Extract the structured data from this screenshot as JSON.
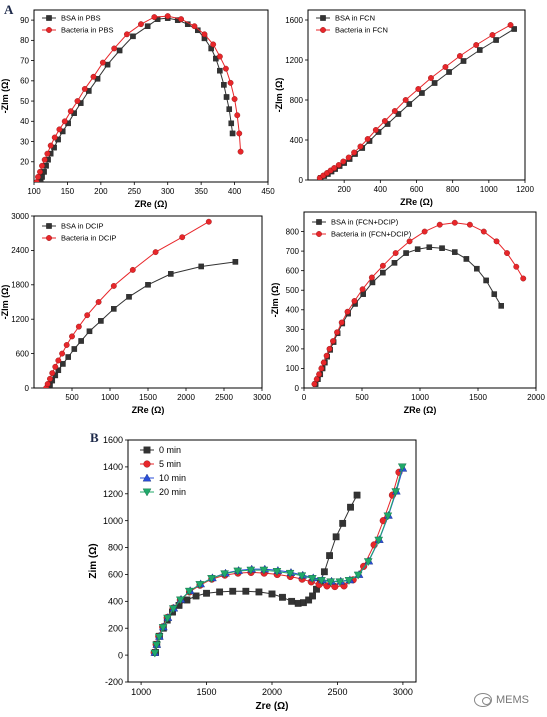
{
  "panel_labels": {
    "a": "A",
    "b": "B"
  },
  "watermark": {
    "text": "MEMS",
    "icon": "wechat-icon"
  },
  "colors": {
    "black": "#333333",
    "red": "#e8262a",
    "blue": "#2a4ed8",
    "green": "#20a86a"
  },
  "chart_data": [
    {
      "type": "line",
      "xlabel": "ZRe (Ω)",
      "ylabel": "-ZIm (Ω)",
      "xlim": [
        100,
        450
      ],
      "ylim": [
        10,
        95
      ],
      "xticks": [
        100,
        150,
        200,
        250,
        300,
        350,
        400,
        450
      ],
      "yticks": [
        20,
        30,
        40,
        50,
        60,
        70,
        80,
        90
      ],
      "legend_position": "top-left",
      "series": [
        {
          "name": "BSA in PBS",
          "color": "#333333",
          "marker": "square",
          "x": [
            110,
            112,
            115,
            118,
            121,
            125,
            130,
            136,
            143,
            151,
            160,
            170,
            182,
            195,
            210,
            228,
            248,
            270,
            285,
            300,
            315,
            330,
            345,
            355,
            365,
            372,
            378,
            384,
            388,
            392,
            395,
            397
          ],
          "y": [
            10,
            12.5,
            15,
            18,
            21,
            24,
            27,
            31,
            35,
            39,
            44,
            49,
            55,
            61,
            68,
            75,
            82,
            87,
            90.5,
            91,
            90,
            88,
            85,
            81,
            76,
            71,
            65,
            58,
            52,
            46,
            39,
            34
          ]
        },
        {
          "name": "Bacteria in PBS",
          "color": "#e8262a",
          "marker": "circle",
          "x": [
            104,
            106,
            109,
            112,
            116,
            120,
            125,
            131,
            138,
            146,
            155,
            165,
            176,
            189,
            203,
            220,
            239,
            260,
            280,
            300,
            320,
            340,
            355,
            368,
            378,
            387,
            394,
            400,
            404,
            407,
            409
          ],
          "y": [
            10,
            12.5,
            15,
            18,
            21,
            24,
            28,
            32,
            36,
            40,
            45,
            50,
            56,
            62,
            69,
            76,
            83,
            88,
            91.5,
            92,
            90.5,
            87,
            83,
            78,
            72,
            66,
            59,
            51,
            43,
            34,
            25
          ]
        }
      ]
    },
    {
      "type": "line",
      "xlabel": "ZRe (Ω)",
      "ylabel": "-ZIm (Ω)",
      "xlim": [
        0,
        1200
      ],
      "ylim": [
        0,
        1700
      ],
      "xticks": [
        200,
        400,
        600,
        800,
        1000,
        1200
      ],
      "yticks": [
        0,
        400,
        800,
        1200,
        1600
      ],
      "legend_position": "top-left",
      "series": [
        {
          "name": "BSA in FCN",
          "color": "#333333",
          "marker": "square",
          "x": [
            70,
            90,
            110,
            130,
            150,
            175,
            200,
            230,
            260,
            300,
            340,
            390,
            440,
            500,
            560,
            630,
            700,
            780,
            860,
            950,
            1040,
            1140
          ],
          "y": [
            20,
            40,
            60,
            85,
            110,
            140,
            170,
            210,
            260,
            320,
            390,
            480,
            560,
            660,
            760,
            870,
            970,
            1080,
            1190,
            1300,
            1400,
            1510
          ]
        },
        {
          "name": "Bacteria in FCN",
          "color": "#e8262a",
          "marker": "circle",
          "x": [
            65,
            85,
            105,
            125,
            145,
            170,
            195,
            225,
            255,
            290,
            330,
            375,
            425,
            480,
            540,
            610,
            680,
            760,
            840,
            930,
            1020,
            1120
          ],
          "y": [
            20,
            45,
            70,
            95,
            120,
            150,
            185,
            225,
            275,
            335,
            410,
            500,
            590,
            690,
            800,
            910,
            1020,
            1130,
            1240,
            1350,
            1450,
            1550
          ]
        }
      ]
    },
    {
      "type": "line",
      "xlabel": "ZRe (Ω)",
      "ylabel": "-ZIm (Ω)",
      "xlim": [
        0,
        3000
      ],
      "ylim": [
        0,
        3000
      ],
      "xticks": [
        500,
        1000,
        1500,
        2000,
        2500,
        3000
      ],
      "yticks": [
        0,
        600,
        1200,
        1800,
        2400,
        3000
      ],
      "legend_position": "top-left",
      "series": [
        {
          "name": "BSA in DCIP",
          "color": "#333333",
          "marker": "square",
          "x": [
            180,
            210,
            240,
            280,
            320,
            380,
            450,
            530,
            620,
            730,
            880,
            1050,
            1250,
            1500,
            1800,
            2200,
            2650
          ],
          "y": [
            0,
            60,
            130,
            220,
            310,
            420,
            540,
            680,
            820,
            990,
            1170,
            1380,
            1590,
            1800,
            1990,
            2120,
            2200
          ]
        },
        {
          "name": "Bacteria in DCIP",
          "color": "#e8262a",
          "marker": "circle",
          "x": [
            160,
            180,
            210,
            240,
            280,
            320,
            370,
            430,
            500,
            590,
            700,
            850,
            1050,
            1300,
            1600,
            1950,
            2300
          ],
          "y": [
            0,
            70,
            160,
            260,
            370,
            480,
            600,
            750,
            900,
            1070,
            1270,
            1500,
            1780,
            2060,
            2370,
            2630,
            2900
          ]
        }
      ]
    },
    {
      "type": "line",
      "xlabel": "ZRe (Ω)",
      "ylabel": "-ZIm (Ω)",
      "xlim": [
        0,
        2000
      ],
      "ylim": [
        0,
        900
      ],
      "xticks": [
        0,
        500,
        1000,
        1500,
        2000
      ],
      "yticks": [
        0,
        100,
        200,
        300,
        400,
        500,
        600,
        700,
        800
      ],
      "legend_position": "top-left",
      "series": [
        {
          "name": "BSA in (FCN+DCIP)",
          "color": "#333333",
          "marker": "square",
          "x": [
            100,
            120,
            140,
            160,
            180,
            200,
            225,
            255,
            290,
            330,
            380,
            440,
            510,
            590,
            680,
            780,
            880,
            980,
            1080,
            1190,
            1300,
            1400,
            1490,
            1570,
            1640,
            1700
          ],
          "y": [
            20,
            45,
            70,
            100,
            130,
            160,
            195,
            235,
            280,
            330,
            380,
            430,
            480,
            540,
            590,
            640,
            690,
            710,
            720,
            715,
            695,
            660,
            610,
            550,
            480,
            420
          ]
        },
        {
          "name": "Bacteria in (FCN+DCIP)",
          "color": "#e8262a",
          "marker": "circle",
          "x": [
            90,
            110,
            130,
            150,
            170,
            195,
            220,
            250,
            285,
            325,
            375,
            435,
            505,
            585,
            680,
            790,
            910,
            1040,
            1170,
            1300,
            1430,
            1550,
            1660,
            1750,
            1830,
            1890
          ],
          "y": [
            20,
            45,
            70,
            100,
            130,
            165,
            200,
            240,
            285,
            335,
            390,
            445,
            505,
            565,
            625,
            690,
            750,
            800,
            835,
            845,
            835,
            800,
            750,
            690,
            620,
            560
          ]
        }
      ]
    },
    {
      "type": "line",
      "xlabel": "Zre (Ω)",
      "ylabel": "Zim (Ω)",
      "xlim": [
        900,
        3100
      ],
      "ylim": [
        -200,
        1600
      ],
      "xticks": [
        1000,
        1500,
        2000,
        2500,
        3000
      ],
      "yticks": [
        -200,
        0,
        200,
        400,
        600,
        800,
        1000,
        1200,
        1400,
        1600
      ],
      "legend_position": "top-left",
      "series": [
        {
          "name": "0 min",
          "color": "#333333",
          "marker": "square",
          "x": [
            1110,
            1120,
            1140,
            1170,
            1200,
            1240,
            1290,
            1350,
            1420,
            1500,
            1600,
            1700,
            1800,
            1900,
            2000,
            2080,
            2150,
            2200,
            2240,
            2280,
            2310,
            2340,
            2370,
            2400,
            2440,
            2490,
            2540,
            2600,
            2650
          ],
          "y": [
            20,
            80,
            140,
            200,
            260,
            320,
            370,
            410,
            440,
            460,
            470,
            475,
            475,
            470,
            455,
            430,
            400,
            385,
            390,
            410,
            440,
            490,
            550,
            620,
            740,
            880,
            980,
            1100,
            1190
          ]
        },
        {
          "name": "5 min",
          "color": "#e8262a",
          "marker": "circle",
          "x": [
            1100,
            1115,
            1135,
            1165,
            1200,
            1245,
            1300,
            1370,
            1450,
            1540,
            1640,
            1740,
            1840,
            1940,
            2040,
            2140,
            2230,
            2300,
            2360,
            2420,
            2480,
            2550,
            2620,
            2700,
            2780,
            2850,
            2920,
            2970
          ],
          "y": [
            20,
            80,
            140,
            210,
            280,
            350,
            410,
            470,
            520,
            565,
            595,
            610,
            615,
            610,
            600,
            585,
            565,
            545,
            525,
            515,
            510,
            515,
            560,
            660,
            820,
            1000,
            1190,
            1360
          ]
        },
        {
          "name": "10 min",
          "color": "#2a4ed8",
          "marker": "triangle-up",
          "x": [
            1105,
            1120,
            1140,
            1170,
            1205,
            1250,
            1305,
            1375,
            1455,
            1545,
            1645,
            1745,
            1845,
            1945,
            2045,
            2145,
            2235,
            2315,
            2385,
            2455,
            2525,
            2595,
            2665,
            2740,
            2820,
            2890,
            2950,
            3000
          ],
          "y": [
            20,
            80,
            140,
            210,
            280,
            350,
            415,
            480,
            530,
            575,
            610,
            630,
            640,
            640,
            630,
            615,
            595,
            575,
            560,
            550,
            550,
            560,
            600,
            700,
            860,
            1040,
            1220,
            1390
          ]
        },
        {
          "name": "20 min",
          "color": "#20a86a",
          "marker": "triangle-down",
          "x": [
            1105,
            1118,
            1138,
            1168,
            1202,
            1246,
            1300,
            1368,
            1448,
            1538,
            1638,
            1738,
            1838,
            1938,
            2038,
            2138,
            2228,
            2308,
            2378,
            2448,
            2518,
            2588,
            2658,
            2735,
            2815,
            2885,
            2945,
            2995
          ],
          "y": [
            15,
            75,
            135,
            205,
            275,
            345,
            410,
            475,
            525,
            570,
            605,
            625,
            632,
            632,
            622,
            608,
            590,
            570,
            555,
            545,
            545,
            555,
            595,
            695,
            855,
            1035,
            1215,
            1400
          ]
        }
      ]
    }
  ]
}
